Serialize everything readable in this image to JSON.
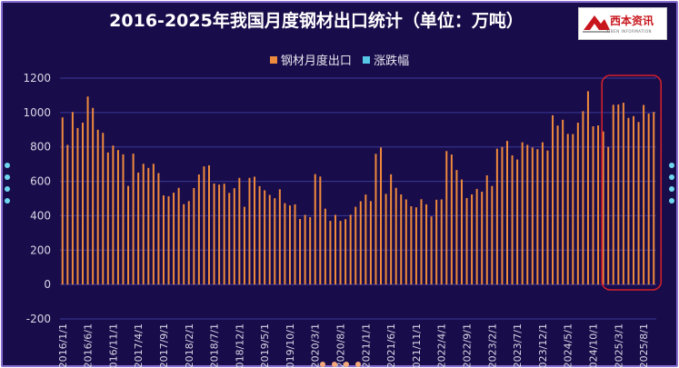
{
  "title": "2016-2025年我国月度钢材出口统计（单位：万吨）",
  "logo": {
    "text": "西本资讯",
    "subtext": "XIBEN INFORMATION"
  },
  "colors": {
    "bar": "#ee8a3c",
    "change": "#57c7e8",
    "highlight": "#d0202a",
    "grid": "#3a3a9a",
    "axis_text": "#d8d8e6"
  },
  "chart_data": {
    "type": "bar",
    "title": "2016-2025年我国月度钢材出口统计（单位：万吨）",
    "legend_position": "top-center",
    "legend": [
      "钢材月度出口",
      "涨跌幅"
    ],
    "series": [
      {
        "name": "钢材月度出口",
        "start": "2016/1",
        "values": [
          972,
          812,
          1003,
          910,
          941,
          1093,
          1027,
          900,
          882,
          768,
          808,
          782,
          757,
          573,
          761,
          651,
          702,
          678,
          702,
          648,
          518,
          513,
          534,
          562,
          467,
          485,
          561,
          640,
          687,
          693,
          587,
          581,
          586,
          533,
          560,
          620,
          452,
          620,
          627,
          572,
          548,
          521,
          502,
          554,
          473,
          460,
          466,
          381,
          405,
          392,
          642,
          628,
          441,
          370,
          405,
          370,
          380,
          406,
          452,
          484,
          523,
          485,
          760,
          797,
          527,
          641,
          562,
          524,
          495,
          455,
          449,
          496,
          466,
          396,
          493,
          495,
          776,
          756,
          666,
          611,
          503,
          524,
          556,
          540,
          635,
          573,
          790,
          800,
          835,
          751,
          727,
          827,
          812,
          797,
          787,
          827,
          779,
          984,
          924,
          958,
          876,
          875,
          941,
          1008,
          1124,
          920,
          925,
          890,
          800,
          1045,
          1047,
          1057,
          969,
          979,
          945,
          1044,
          994,
          1003
        ],
        "values_note_null": null
      },
      {
        "name": "涨跌幅",
        "values": []
      }
    ],
    "x_tick_labels": [
      "2016/1/1",
      "2016/6/1",
      "2016/11/1",
      "2017/4/1",
      "2017/9/1",
      "2018/2/1",
      "2018/7/1",
      "2018/12/1",
      "2019/5/1",
      "2019/10/1",
      "2020/3/1",
      "2020/8/1",
      "2021/1/1",
      "2021/6/1",
      "2021/11/1",
      "2022/4/1",
      "2022/9/1",
      "2023/2/1",
      "2023/7/1",
      "2023/12/1",
      "2024/5/1",
      "2024/10/1",
      "2025/3/1",
      "2025/8/1"
    ],
    "ylim": [
      -200,
      1200
    ],
    "y_ticks": [
      -200,
      0,
      200,
      400,
      600,
      800,
      1000,
      1200
    ],
    "grid": true,
    "highlight_range": [
      "2025/1",
      "2025/10"
    ]
  }
}
